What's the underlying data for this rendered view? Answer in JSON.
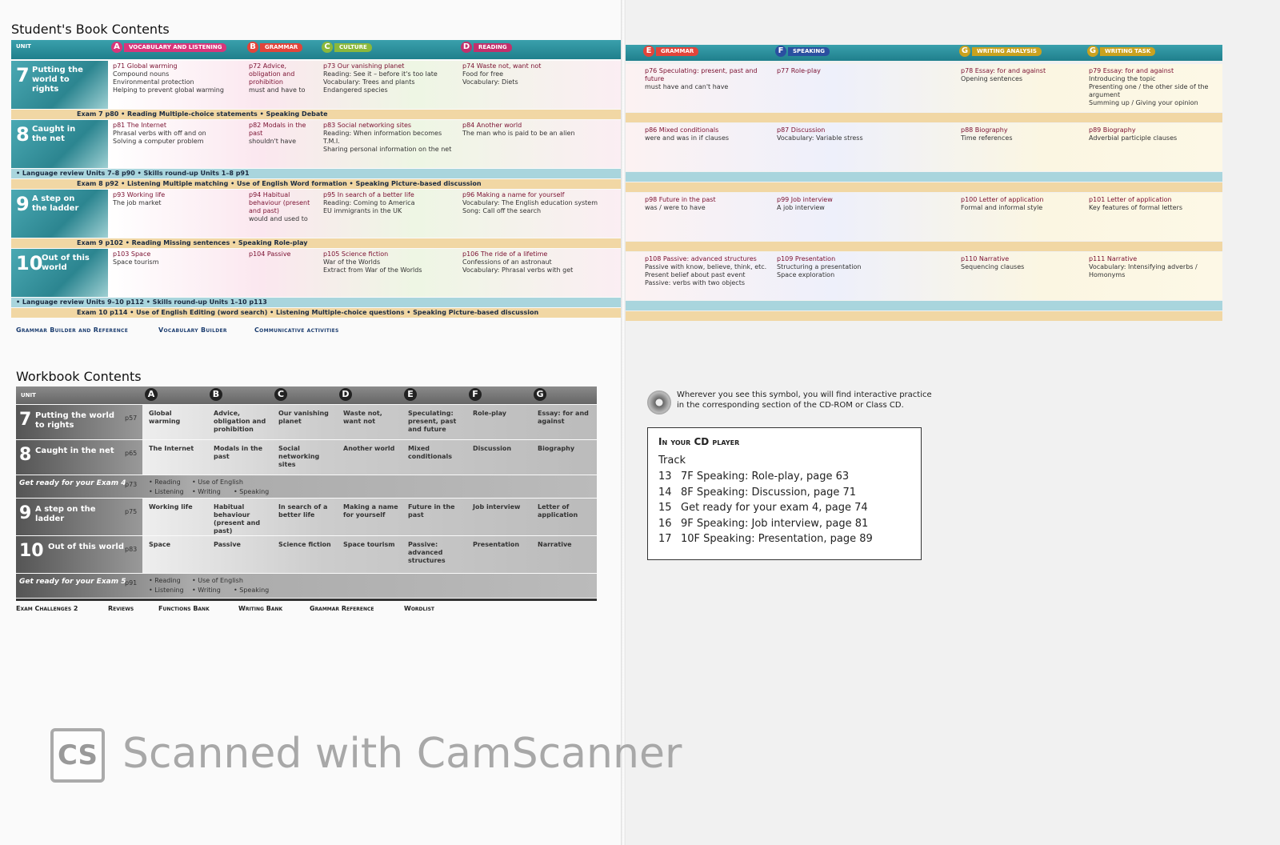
{
  "student_book": {
    "title": "Student's Book Contents",
    "headers": [
      {
        "letter": null,
        "label": "Unit"
      },
      {
        "letter": "A",
        "label": "Vocabulary and listening"
      },
      {
        "letter": "B",
        "label": "Grammar"
      },
      {
        "letter": "C",
        "label": "Culture"
      },
      {
        "letter": "D",
        "label": "Reading"
      },
      {
        "letter": "E",
        "label": "Grammar"
      },
      {
        "letter": "F",
        "label": "Speaking"
      },
      {
        "letter": "G",
        "label": "Writing analysis"
      },
      {
        "letter": "G",
        "label": "Writing task"
      }
    ],
    "rows": [
      {
        "kind": "unit",
        "number": "7",
        "title": "Putting the world to rights",
        "cells": [
          [
            "p71 Global warming",
            "Compound nouns",
            "Environmental protection",
            "Helping to prevent global warming"
          ],
          [
            "p72 Advice, obligation and prohibition",
            "must and have to"
          ],
          [
            "p73 Our vanishing planet",
            "Reading: See it – before it's too late",
            "Vocabulary: Trees and plants",
            "Endangered species"
          ],
          [
            "p74 Waste not, want not",
            "Food for free",
            "Vocabulary: Diets"
          ],
          [
            "p76 Speculating: present, past and future",
            "must have and can't have"
          ],
          [
            "p77 Role-play"
          ],
          [
            "p78 Essay: for and against",
            "Opening sentences"
          ],
          [
            "p79 Essay: for and against",
            "Introducing the topic",
            "Presenting one / the other side of the argument",
            "Summing up / Giving your opinion"
          ]
        ]
      },
      {
        "kind": "exam",
        "text": "Exam 7 p80 • Reading Multiple-choice statements • Speaking Debate"
      },
      {
        "kind": "unit",
        "number": "8",
        "title": "Caught in the net",
        "cells": [
          [
            "p81 The Internet",
            "Phrasal verbs with off and on",
            "Solving a computer problem"
          ],
          [
            "p82 Modals in the past",
            "shouldn't have"
          ],
          [
            "p83 Social networking sites",
            "Reading: When information becomes T.M.I.",
            "Sharing personal information on the net"
          ],
          [
            "p84 Another world",
            "The man who is paid to be an alien"
          ],
          [
            "p86 Mixed conditionals",
            "were and was in if clauses"
          ],
          [
            "p87 Discussion",
            "Vocabulary: Variable stress"
          ],
          [
            "p88 Biography",
            "Time references"
          ],
          [
            "p89 Biography",
            "Adverbial participle clauses"
          ]
        ]
      },
      {
        "kind": "review",
        "text": "• Language review Units 7–8 p90 • Skills round-up Units 1–8 p91"
      },
      {
        "kind": "exam",
        "text": "Exam 8 p92 • Listening Multiple matching • Use of English Word formation • Speaking Picture-based discussion"
      },
      {
        "kind": "unit",
        "number": "9",
        "title": "A step on the ladder",
        "cells": [
          [
            "p93 Working life",
            "The job market"
          ],
          [
            "p94 Habitual behaviour (present and past)",
            "would and used to"
          ],
          [
            "p95 In search of a better life",
            "Reading: Coming to America",
            "EU immigrants in the UK"
          ],
          [
            "p96 Making a name for yourself",
            "Vocabulary: The English education system",
            "Song: Call off the search"
          ],
          [
            "p98 Future in the past",
            "was / were to have"
          ],
          [
            "p99 Job interview",
            "A job interview"
          ],
          [
            "p100 Letter of application",
            "Formal and informal style"
          ],
          [
            "p101 Letter of application",
            "Key features of formal letters"
          ]
        ]
      },
      {
        "kind": "exam",
        "text": "Exam 9 p102 • Reading Missing sentences • Speaking Role-play"
      },
      {
        "kind": "unit",
        "number": "10",
        "title": "Out of this world",
        "cells": [
          [
            "p103 Space",
            "Space tourism"
          ],
          [
            "p104 Passive"
          ],
          [
            "p105 Science fiction",
            "War of the Worlds",
            "Extract from War of the Worlds"
          ],
          [
            "p106 The ride of a lifetime",
            "Confessions of an astronaut",
            "Vocabulary: Phrasal verbs with get"
          ],
          [
            "p108 Passive: advanced structures",
            "Passive with know, believe, think, etc.",
            "Present belief about past event",
            "Passive: verbs with two objects"
          ],
          [
            "p109 Presentation",
            "Structuring a presentation",
            "Space exploration"
          ],
          [
            "p110 Narrative",
            "Sequencing clauses"
          ],
          [
            "p111 Narrative",
            "Vocabulary: Intensifying adverbs / Homonyms"
          ]
        ]
      },
      {
        "kind": "review",
        "text": "• Language review Units 9–10 p112 • Skills round-up Units 1–10 p113"
      },
      {
        "kind": "exam",
        "text": "Exam 10 p114 • Use of English Editing (word search) • Listening Multiple-choice questions • Speaking Picture-based discussion"
      }
    ],
    "footer": [
      "Grammar Builder and Reference",
      "Vocabulary Builder",
      "Communicative activities"
    ]
  },
  "workbook": {
    "title": "Workbook Contents",
    "headers": [
      "Unit",
      "A",
      "B",
      "C",
      "D",
      "E",
      "F",
      "G"
    ],
    "rows": [
      {
        "kind": "unit",
        "number": "7",
        "title": "Putting the world to rights",
        "page": "p57",
        "cells": [
          "Global warming",
          "Advice, obligation and prohibition",
          "Our vanishing planet",
          "Waste not, want not",
          "Speculating: present, past and future",
          "Role-play",
          "Essay: for and against"
        ]
      },
      {
        "kind": "unit",
        "number": "8",
        "title": "Caught in the net",
        "page": "p65",
        "cells": [
          "The Internet",
          "Modals in the past",
          "Social networking sites",
          "Another world",
          "Mixed conditionals",
          "Discussion",
          "Biography"
        ]
      },
      {
        "kind": "exam",
        "title": "Get ready for your Exam 4",
        "page": "p73",
        "cells": [
          "• Reading",
          "• Use of English",
          "• Listening",
          "• Writing",
          "• Speaking"
        ]
      },
      {
        "kind": "unit",
        "number": "9",
        "title": "A step on the ladder",
        "page": "p75",
        "cells": [
          "Working life",
          "Habitual behaviour (present and past)",
          "In search of a better life",
          "Making a name for yourself",
          "Future in the past",
          "Job interview",
          "Letter of application"
        ]
      },
      {
        "kind": "unit",
        "number": "10",
        "title": "Out of this world",
        "page": "p83",
        "cells": [
          "Space",
          "Passive",
          "Science fiction",
          "Space tourism",
          "Passive: advanced structures",
          "Presentation",
          "Narrative"
        ]
      },
      {
        "kind": "exam",
        "title": "Get ready for your Exam 5",
        "page": "p91",
        "cells": [
          "• Reading",
          "• Use of English",
          "• Listening",
          "• Writing",
          "• Speaking"
        ]
      }
    ],
    "footer": [
      "Exam Challenges 2",
      "Reviews",
      "Functions Bank",
      "Writing Bank",
      "Grammar Reference",
      "Wordlist"
    ]
  },
  "cd_note": "Wherever you see this symbol, you will find interactive practice in the corresponding section of the CD-ROM or Class CD.",
  "cd_box": {
    "title": "In your CD player",
    "subtitle": "Track",
    "tracks": [
      {
        "number": "13",
        "text": "7F Speaking: Role-play, page 63"
      },
      {
        "number": "14",
        "text": "8F Speaking: Discussion, page 71"
      },
      {
        "number": "15",
        "text": "Get ready for your exam 4, page 74"
      },
      {
        "number": "16",
        "text": "9F Speaking: Job interview, page 81"
      },
      {
        "number": "17",
        "text": "10F Speaking: Presentation, page 89"
      }
    ]
  },
  "watermark": {
    "logo": "CS",
    "text": "Scanned with CamScanner"
  }
}
